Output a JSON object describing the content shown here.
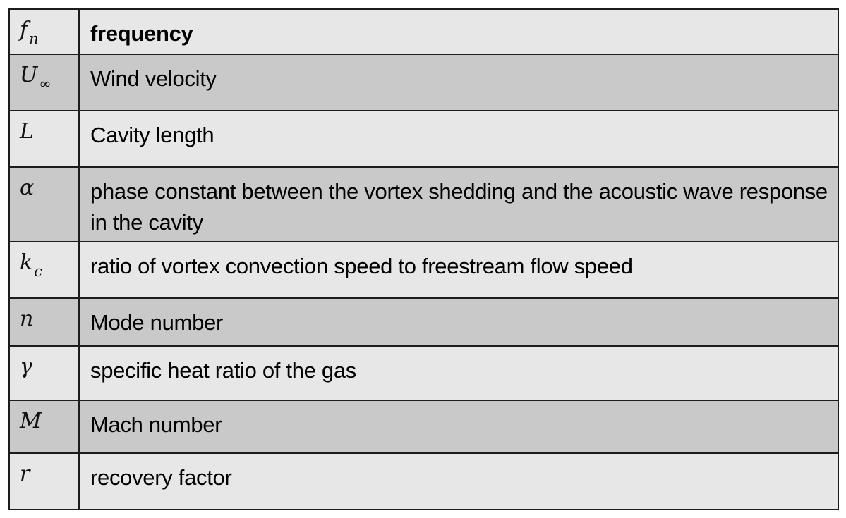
{
  "rows": [
    {
      "symbol": "f",
      "subscript": "n",
      "description": "frequency",
      "bold": true,
      "shade": "light",
      "height": 64
    },
    {
      "symbol": "U",
      "subscript": "∞",
      "description": "Wind velocity",
      "bold": false,
      "shade": "dark",
      "height": 80
    },
    {
      "symbol": "L",
      "subscript": "",
      "description": "Cavity length",
      "bold": false,
      "shade": "light",
      "height": 80
    },
    {
      "symbol": "α",
      "subscript": "",
      "description": "phase constant between the vortex shedding and the acoustic wave response in the cavity",
      "bold": false,
      "shade": "dark",
      "height": 106
    },
    {
      "symbol": "k",
      "subscript": "c",
      "description": "ratio of vortex convection speed to freestream flow speed",
      "bold": false,
      "shade": "light",
      "height": 80
    },
    {
      "symbol": "n",
      "subscript": "",
      "description": "Mode number",
      "bold": false,
      "shade": "dark",
      "height": 68
    },
    {
      "symbol": "γ",
      "subscript": "",
      "description": "specific heat ratio of the gas",
      "bold": false,
      "shade": "light",
      "height": 77
    },
    {
      "symbol": "M",
      "subscript": "",
      "description": "Mach number",
      "bold": false,
      "shade": "dark",
      "height": 75
    },
    {
      "symbol": "r",
      "subscript": "",
      "description": "recovery factor",
      "bold": false,
      "shade": "light",
      "height": 80
    }
  ],
  "colors": {
    "light_row": "#e7e7e7",
    "dark_row": "#c9c9c9",
    "border": "#1c1c1c"
  }
}
